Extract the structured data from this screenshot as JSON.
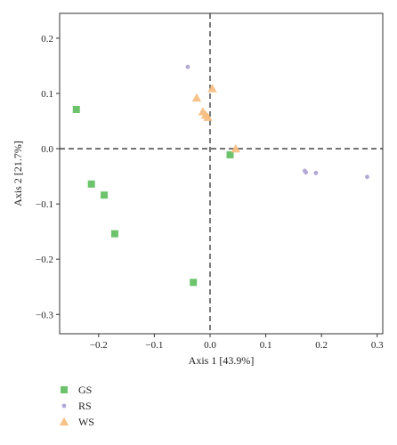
{
  "chart_data": {
    "type": "scatter",
    "xlabel": "Axis 1 [43.9%]",
    "ylabel": "Axis 2 [21.7%]",
    "xlim": [
      -0.27,
      0.31
    ],
    "ylim": [
      -0.335,
      0.245
    ],
    "xticks": [
      {
        "value": -0.2,
        "label": "−0.2"
      },
      {
        "value": -0.1,
        "label": "−0.1"
      },
      {
        "value": 0.0,
        "label": "0.0"
      },
      {
        "value": 0.1,
        "label": "0.1"
      },
      {
        "value": 0.2,
        "label": "0.2"
      },
      {
        "value": 0.3,
        "label": "0.3"
      }
    ],
    "yticks": [
      {
        "value": 0.2,
        "label": "0.2"
      },
      {
        "value": 0.1,
        "label": "0.1"
      },
      {
        "value": 0.0,
        "label": "0.0"
      },
      {
        "value": -0.1,
        "label": "−0.1"
      },
      {
        "value": -0.2,
        "label": "−0.2"
      },
      {
        "value": -0.3,
        "label": "−0.3"
      }
    ],
    "reference_lines": {
      "x": 0,
      "y": 0,
      "style": "dashed"
    },
    "grid": false,
    "legend_position": "bottom-left",
    "series": [
      {
        "name": "GS",
        "marker": "square",
        "color": "#6cc36b",
        "points": [
          {
            "x": -0.24,
            "y": 0.071
          },
          {
            "x": -0.213,
            "y": -0.064
          },
          {
            "x": -0.19,
            "y": -0.084
          },
          {
            "x": -0.171,
            "y": -0.154
          },
          {
            "x": -0.03,
            "y": -0.242
          },
          {
            "x": 0.036,
            "y": -0.011
          }
        ]
      },
      {
        "name": "RS",
        "marker": "circle",
        "color": "#b3a7d6",
        "points": [
          {
            "x": -0.04,
            "y": 0.148
          },
          {
            "x": 0.17,
            "y": -0.04
          },
          {
            "x": 0.172,
            "y": -0.043
          },
          {
            "x": 0.19,
            "y": -0.044
          },
          {
            "x": 0.282,
            "y": -0.051
          }
        ]
      },
      {
        "name": "WS",
        "marker": "triangle",
        "color": "#f6bd7f",
        "points": [
          {
            "x": 0.004,
            "y": 0.109
          },
          {
            "x": -0.024,
            "y": 0.092
          },
          {
            "x": -0.013,
            "y": 0.067
          },
          {
            "x": -0.008,
            "y": 0.061
          },
          {
            "x": -0.004,
            "y": 0.057
          },
          {
            "x": 0.046,
            "y": 0.0
          }
        ]
      }
    ]
  }
}
